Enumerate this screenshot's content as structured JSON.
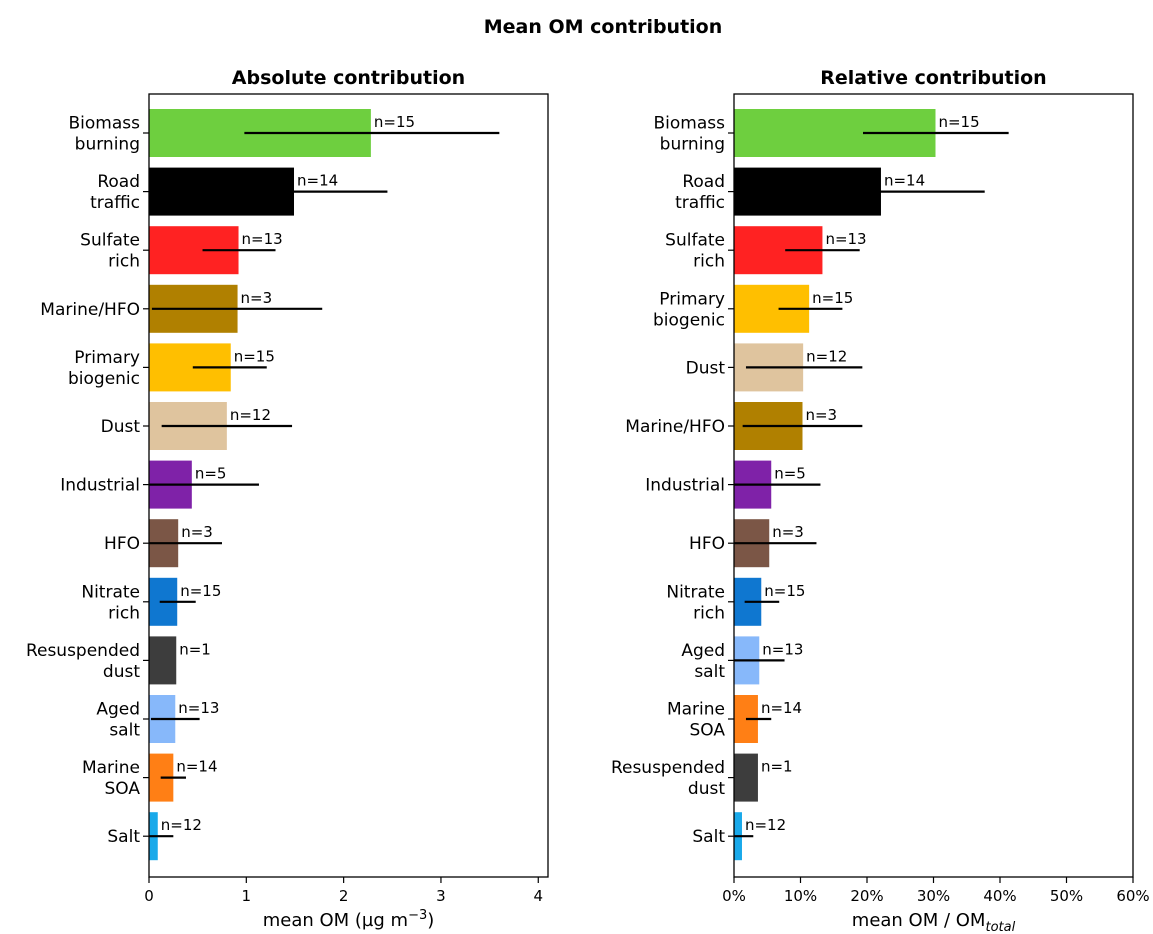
{
  "figure_title": "Mean OM contribution",
  "chart_data": [
    {
      "type": "bar",
      "orientation": "horizontal",
      "title": "Absolute contribution",
      "xlabel_parts": {
        "main": "mean OM (µg m",
        "sup": "−3",
        "end": ")"
      },
      "xlim": [
        0,
        4.1
      ],
      "xticks": [
        0,
        1,
        2,
        3,
        4
      ],
      "xtick_labels": [
        "0",
        "1",
        "2",
        "3",
        "4"
      ],
      "bars": [
        {
          "label": [
            "Biomass",
            "burning"
          ],
          "value": 2.28,
          "err": [
            0.98,
            3.6
          ],
          "n": "n=15",
          "color": "#6ecf3f"
        },
        {
          "label": [
            "Road",
            "traffic"
          ],
          "value": 1.49,
          "err": [
            0.0,
            2.45
          ],
          "n": "n=14",
          "color": "#000000"
        },
        {
          "label": [
            "Sulfate",
            "rich"
          ],
          "value": 0.92,
          "err": [
            0.55,
            1.3
          ],
          "n": "n=13",
          "color": "#ff2222"
        },
        {
          "label": [
            "Marine/HFO"
          ],
          "value": 0.91,
          "err": [
            0.03,
            1.78
          ],
          "n": "n=3",
          "color": "#b08000"
        },
        {
          "label": [
            "Primary",
            "biogenic"
          ],
          "value": 0.84,
          "err": [
            0.45,
            1.21
          ],
          "n": "n=15",
          "color": "#ffbf00"
        },
        {
          "label": [
            "Dust"
          ],
          "value": 0.8,
          "err": [
            0.13,
            1.47
          ],
          "n": "n=12",
          "color": "#dfc49e"
        },
        {
          "label": [
            "Industrial"
          ],
          "value": 0.44,
          "err": [
            0.0,
            1.13
          ],
          "n": "n=5",
          "color": "#7f22a8"
        },
        {
          "label": [
            "HFO"
          ],
          "value": 0.3,
          "err": [
            0.0,
            0.75
          ],
          "n": "n=3",
          "color": "#7b5646"
        },
        {
          "label": [
            "Nitrate",
            "rich"
          ],
          "value": 0.29,
          "err": [
            0.11,
            0.48
          ],
          "n": "n=15",
          "color": "#0f77d0"
        },
        {
          "label": [
            "Resuspended",
            "dust"
          ],
          "value": 0.28,
          "err": null,
          "n": "n=1",
          "color": "#3d3d3d"
        },
        {
          "label": [
            "Aged",
            "salt"
          ],
          "value": 0.27,
          "err": [
            0.02,
            0.52
          ],
          "n": "n=13",
          "color": "#87b8fa"
        },
        {
          "label": [
            "Marine",
            "SOA"
          ],
          "value": 0.25,
          "err": [
            0.12,
            0.38
          ],
          "n": "n=14",
          "color": "#ff7f15"
        },
        {
          "label": [
            "Salt"
          ],
          "value": 0.09,
          "err": [
            0.0,
            0.25
          ],
          "n": "n=12",
          "color": "#19a9ea"
        }
      ]
    },
    {
      "type": "bar",
      "orientation": "horizontal",
      "title": "Relative contribution",
      "xlabel_parts": {
        "main": "mean OM / OM",
        "sub": "total"
      },
      "xlim": [
        0,
        0.6
      ],
      "xticks": [
        0,
        0.1,
        0.2,
        0.3,
        0.4,
        0.5,
        0.6
      ],
      "xtick_labels": [
        "0%",
        "10%",
        "20%",
        "30%",
        "40%",
        "50%",
        "60%"
      ],
      "bars": [
        {
          "label": [
            "Biomass",
            "burning"
          ],
          "value": 0.303,
          "err": [
            0.194,
            0.413
          ],
          "n": "n=15",
          "color": "#6ecf3f"
        },
        {
          "label": [
            "Road",
            "traffic"
          ],
          "value": 0.221,
          "err": [
            0.0,
            0.377
          ],
          "n": "n=14",
          "color": "#000000"
        },
        {
          "label": [
            "Sulfate",
            "rich"
          ],
          "value": 0.133,
          "err": [
            0.077,
            0.189
          ],
          "n": "n=13",
          "color": "#ff2222"
        },
        {
          "label": [
            "Primary",
            "biogenic"
          ],
          "value": 0.113,
          "err": [
            0.067,
            0.163
          ],
          "n": "n=15",
          "color": "#ffbf00"
        },
        {
          "label": [
            "Dust"
          ],
          "value": 0.104,
          "err": [
            0.018,
            0.193
          ],
          "n": "n=12",
          "color": "#dfc49e"
        },
        {
          "label": [
            "Marine/HFO"
          ],
          "value": 0.103,
          "err": [
            0.013,
            0.193
          ],
          "n": "n=3",
          "color": "#b08000"
        },
        {
          "label": [
            "Industrial"
          ],
          "value": 0.056,
          "err": [
            0.0,
            0.13
          ],
          "n": "n=5",
          "color": "#7f22a8"
        },
        {
          "label": [
            "HFO"
          ],
          "value": 0.053,
          "err": [
            0.0,
            0.124
          ],
          "n": "n=3",
          "color": "#7b5646"
        },
        {
          "label": [
            "Nitrate",
            "rich"
          ],
          "value": 0.041,
          "err": [
            0.016,
            0.068
          ],
          "n": "n=15",
          "color": "#0f77d0"
        },
        {
          "label": [
            "Aged",
            "salt"
          ],
          "value": 0.038,
          "err": [
            0.0,
            0.076
          ],
          "n": "n=13",
          "color": "#87b8fa"
        },
        {
          "label": [
            "Marine",
            "SOA"
          ],
          "value": 0.036,
          "err": [
            0.018,
            0.056
          ],
          "n": "n=14",
          "color": "#ff7f15"
        },
        {
          "label": [
            "Resuspended",
            "dust"
          ],
          "value": 0.036,
          "err": null,
          "n": "n=1",
          "color": "#3d3d3d"
        },
        {
          "label": [
            "Salt"
          ],
          "value": 0.012,
          "err": [
            0.0,
            0.029
          ],
          "n": "n=12",
          "color": "#19a9ea"
        }
      ]
    }
  ]
}
